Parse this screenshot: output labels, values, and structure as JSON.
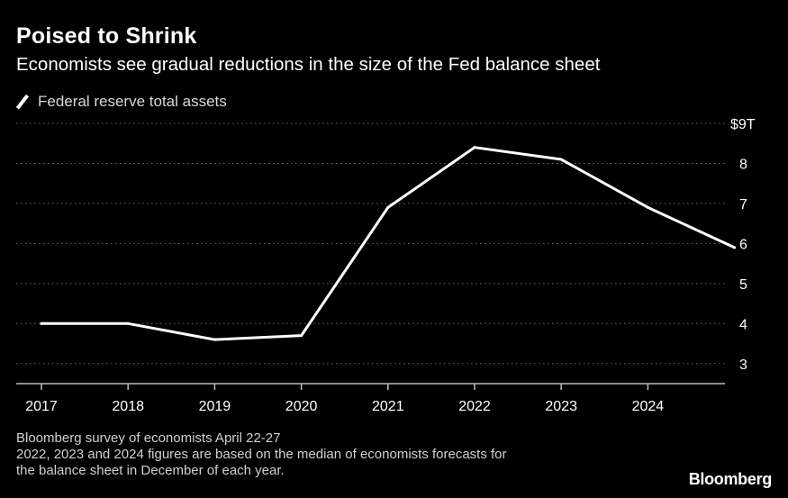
{
  "header": {
    "title": "Poised to Shrink",
    "subtitle": "Economists see gradual reductions in the size of the Fed balance sheet"
  },
  "legend": {
    "label": "Federal reserve total assets"
  },
  "footnote": {
    "line1": "Bloomberg survey of economists April 22-27",
    "line2": "2022, 2023 and 2024 figures are based on the median of economists forecasts for",
    "line3": "the balance sheet in December of each year."
  },
  "brand": "Bloomberg",
  "colors": {
    "background": "#000000",
    "line": "#ffffff",
    "grid": "#6a6a6a",
    "text": "#ffffff"
  },
  "chart_data": {
    "type": "line",
    "title": "Poised to Shrink",
    "subtitle": "Economists see gradual reductions in the size of the Fed balance sheet",
    "xlabel": "",
    "ylabel": "",
    "x": [
      2017,
      2018,
      2019,
      2020,
      2021,
      2022,
      2023,
      2024,
      2025
    ],
    "x_tick_labels": [
      "2017",
      "2018",
      "2019",
      "2020",
      "2021",
      "2022",
      "2023",
      "2024"
    ],
    "series": [
      {
        "name": "Federal reserve total assets",
        "values": [
          4.0,
          4.0,
          3.6,
          3.7,
          6.9,
          8.4,
          8.1,
          6.9,
          5.9
        ]
      }
    ],
    "y_ticks": [
      3,
      4,
      5,
      6,
      7,
      8,
      9
    ],
    "y_tick_labels": [
      "3",
      "4",
      "5",
      "6",
      "7",
      "8",
      "$9T"
    ],
    "ylim": [
      2.5,
      9
    ],
    "grid": true,
    "legend_position": "top-left",
    "y_axis_side": "right"
  }
}
